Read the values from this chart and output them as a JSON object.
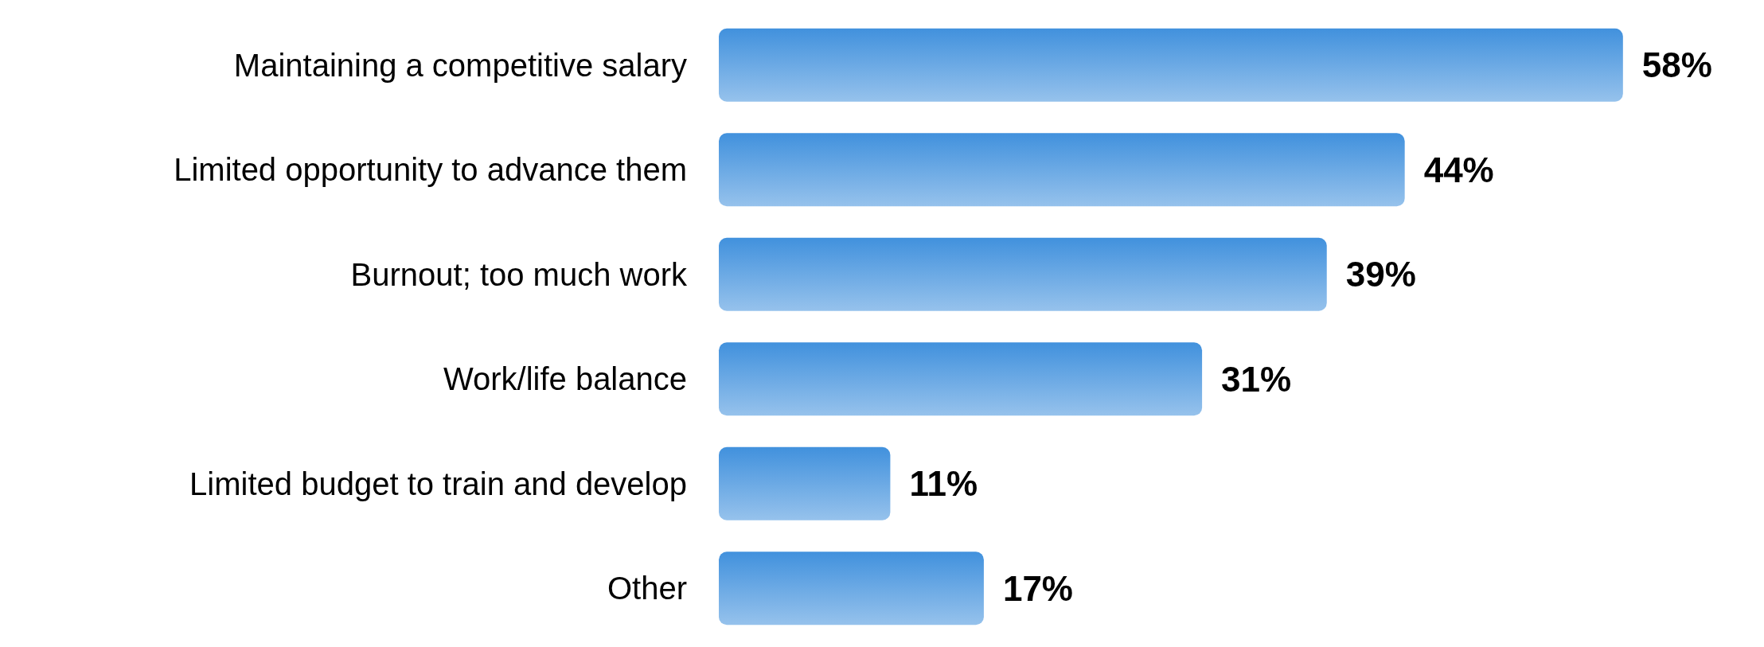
{
  "chart_data": {
    "type": "bar",
    "orientation": "horizontal",
    "categories": [
      "Maintaining a competitive salary",
      "Limited opportunity to advance them",
      "Burnout; too much work",
      "Work/life balance",
      "Limited budget to train and develop",
      "Other"
    ],
    "values": [
      58,
      44,
      39,
      31,
      11,
      17
    ],
    "value_labels": [
      "58%",
      "44%",
      "39%",
      "31%",
      "11%",
      "17%"
    ],
    "color": "#4191dd"
  }
}
